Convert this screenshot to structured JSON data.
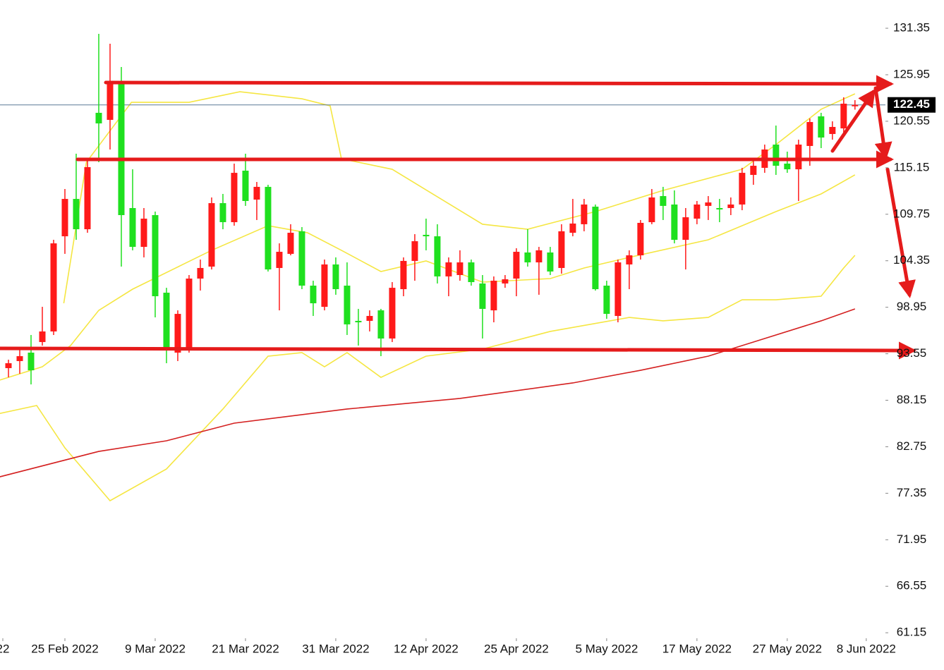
{
  "chart_data": {
    "type": "candlestick",
    "candles": {
      "open": [
        91.88,
        92.7,
        93.68,
        94.91,
        96.14,
        107.19,
        111.53,
        108.01,
        121.53,
        120.71,
        124.97,
        110.47,
        105.96,
        109.65,
        100.64,
        93.68,
        94.09,
        102.28,
        103.67,
        111.04,
        108.83,
        114.81,
        111.45,
        112.93,
        103.51,
        105.15,
        107.77,
        101.46,
        99.0,
        103.92,
        101.46,
        97.37,
        97.37,
        98.59,
        95.32,
        101.05,
        104.33,
        107.36,
        107.19,
        102.53,
        102.69,
        104.16,
        101.71,
        98.59,
        101.71,
        102.28,
        105.31,
        104.16,
        105.31,
        103.51,
        107.6,
        108.59,
        110.63,
        101.46,
        97.94,
        103.92,
        104.98,
        108.83,
        111.86,
        110.88,
        106.78,
        109.24,
        110.72,
        110.47,
        110.47,
        110.88,
        114.32,
        115.14,
        117.84,
        115.63,
        114.97,
        117.68,
        121.12,
        119.07,
        119.72,
        122.4
      ],
      "high": [
        92.86,
        94.09,
        95.73,
        99.0,
        106.78,
        112.68,
        116.78,
        115.96,
        130.7,
        129.55,
        126.85,
        114.97,
        110.47,
        110.06,
        101.21,
        98.59,
        102.69,
        104.49,
        111.7,
        112.11,
        115.63,
        116.78,
        113.5,
        113.17,
        106.37,
        108.59,
        108.26,
        102.03,
        104.49,
        104.74,
        104.16,
        98.76,
        98.59,
        98.76,
        101.87,
        104.74,
        107.44,
        109.24,
        108.59,
        104.74,
        105.56,
        104.49,
        102.69,
        102.53,
        102.69,
        105.8,
        108.01,
        105.96,
        105.96,
        108.59,
        111.53,
        111.53,
        110.88,
        102.03,
        104.49,
        105.56,
        109.08,
        112.68,
        112.93,
        112.52,
        110.47,
        111.29,
        111.86,
        111.53,
        111.7,
        115.14,
        115.96,
        117.84,
        120.05,
        117.02,
        118.41,
        120.87,
        121.53,
        120.54,
        123.33,
        123.0
      ],
      "low": [
        90.81,
        91.22,
        89.99,
        94.5,
        95.73,
        105.15,
        106.78,
        107.6,
        115.79,
        117.27,
        103.67,
        105.56,
        104.74,
        97.77,
        92.45,
        92.7,
        93.68,
        100.89,
        103.34,
        108.01,
        108.42,
        110.72,
        109.08,
        103.1,
        98.59,
        104.98,
        101.05,
        97.94,
        98.59,
        100.4,
        95.73,
        94.5,
        96.14,
        93.27,
        94.91,
        100.23,
        102.03,
        105.56,
        101.71,
        100.23,
        102.03,
        101.46,
        95.32,
        97.2,
        101.21,
        100.23,
        103.67,
        100.4,
        102.69,
        102.85,
        107.19,
        107.77,
        100.89,
        97.61,
        97.2,
        101.05,
        104.49,
        108.59,
        109.08,
        106.37,
        103.34,
        108.59,
        109.08,
        108.83,
        109.65,
        110.22,
        113.17,
        114.56,
        114.32,
        114.56,
        111.29,
        115.38,
        117.43,
        118.41,
        119.07,
        121.9
      ],
      "close": [
        92.45,
        93.27,
        91.63,
        96.14,
        106.37,
        111.53,
        108.01,
        115.22,
        120.3,
        124.97,
        109.65,
        105.96,
        109.24,
        100.23,
        94.09,
        98.18,
        102.28,
        103.51,
        111.04,
        108.83,
        114.56,
        111.29,
        112.93,
        103.34,
        105.39,
        107.6,
        101.46,
        99.41,
        103.92,
        101.05,
        96.96,
        97.2,
        97.94,
        95.32,
        101.21,
        104.33,
        106.62,
        107.19,
        102.53,
        104.16,
        104.16,
        101.87,
        98.76,
        102.03,
        102.2,
        105.39,
        104.16,
        105.56,
        103.1,
        107.77,
        108.67,
        110.88,
        101.05,
        98.18,
        104.16,
        104.98,
        108.75,
        111.7,
        110.72,
        106.78,
        109.4,
        110.88,
        111.12,
        110.31,
        110.88,
        114.56,
        115.38,
        117.27,
        115.38,
        114.97,
        117.84,
        120.46,
        118.66,
        119.89,
        122.59,
        122.45
      ]
    },
    "up_color": "#ff1a1a",
    "down_color": "#1fe01f",
    "lines": [
      {
        "color": "#f5e642",
        "x": [
          4.9,
          6.9,
          10.9,
          16,
          20.5,
          26,
          28.5,
          29.5,
          34,
          42,
          46,
          52,
          58,
          65,
          68,
          72,
          75
        ],
        "values": [
          99.41,
          115.79,
          122.75,
          122.75,
          123.98,
          123.16,
          122.34,
          116.2,
          114.97,
          108.59,
          108.01,
          110.06,
          112.52,
          114.97,
          117.84,
          121.94,
          123.74
        ]
      },
      {
        "color": "#f5e642",
        "x": [
          -1,
          3,
          5.5,
          8,
          11,
          18,
          23,
          26.5,
          29.5,
          33,
          37,
          42,
          48,
          51,
          55,
          62,
          68,
          72,
          75
        ],
        "values": [
          90.4,
          92.04,
          94.5,
          98.59,
          101.05,
          105.56,
          108.42,
          107.6,
          105.56,
          103.1,
          104.33,
          101.87,
          102.28,
          103.51,
          104.74,
          106.78,
          110.06,
          112.11,
          114.32
        ]
      },
      {
        "color": "#f5e642",
        "x": [
          -1,
          2.5,
          5,
          9,
          14,
          19,
          23,
          26,
          28,
          30,
          33,
          37,
          42,
          48,
          55,
          58,
          62,
          65,
          68,
          72,
          74,
          75
        ],
        "values": [
          86.55,
          87.54,
          82.62,
          76.48,
          80.17,
          87.13,
          93.27,
          93.68,
          92.04,
          93.68,
          90.81,
          93.27,
          94.09,
          96.14,
          97.77,
          97.37,
          97.77,
          99.82,
          99.82,
          100.23,
          103.51,
          104.98
        ]
      },
      {
        "color": "#d42020",
        "x": [
          -1,
          8,
          14,
          20,
          30,
          40,
          50,
          56,
          62,
          66,
          72,
          75
        ],
        "values": [
          79.18,
          82.21,
          83.44,
          85.49,
          87.13,
          88.36,
          90.16,
          91.63,
          93.27,
          94.91,
          97.37,
          98.76
        ]
      }
    ],
    "current_price": 122.45,
    "xlim": [
      -0.75,
      77.7
    ],
    "ylim": [
      60.51,
      134.63
    ],
    "yticks": [
      131.35,
      125.95,
      120.55,
      115.15,
      109.75,
      104.35,
      98.95,
      93.55,
      88.15,
      82.75,
      77.35,
      71.95,
      66.55,
      61.15
    ],
    "xticks": [
      {
        "value": -0.5,
        "label": "22"
      },
      {
        "value": 5,
        "label": "25 Feb 2022"
      },
      {
        "value": 13,
        "label": "9 Mar 2022"
      },
      {
        "value": 21,
        "label": "21 Mar 2022"
      },
      {
        "value": 29,
        "label": "31 Mar 2022"
      },
      {
        "value": 37,
        "label": "12 Apr 2022"
      },
      {
        "value": 45,
        "label": "25 Apr 2022"
      },
      {
        "value": 53,
        "label": "5 May 2022"
      },
      {
        "value": 61,
        "label": "17 May 2022"
      },
      {
        "value": 69,
        "label": "27 May 2022"
      },
      {
        "value": 76,
        "label": "8 Jun 2022"
      }
    ]
  }
}
